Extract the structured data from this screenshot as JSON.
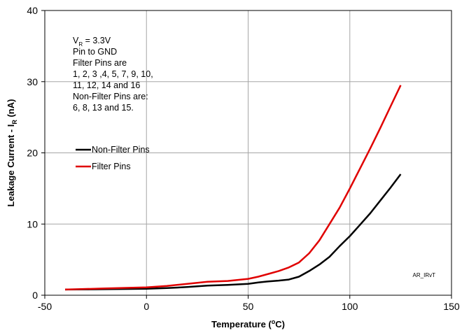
{
  "chart_data": {
    "type": "line",
    "xlabel": {
      "text": "Temperature (",
      "sup": "o",
      "tail": "C)"
    },
    "ylabel": {
      "text": "Leakage Current - I",
      "sub": "R",
      "tail": " (nA)"
    },
    "xlim": [
      -50,
      150
    ],
    "ylim": [
      0,
      40
    ],
    "xticks": [
      "-50",
      "0",
      "50",
      "100",
      "150"
    ],
    "yticks": [
      "0",
      "10",
      "20",
      "30",
      "40"
    ],
    "grid": true,
    "legend_position": "upper-left",
    "annotation_first": {
      "text": "V",
      "sub": "R",
      "tail": " = 3.3V"
    },
    "annotation_lines": [
      "Pin to GND",
      "Filter Pins are",
      "1, 2, 3 ,4, 5, 7, 9, 10,",
      "11, 12, 14 and 16",
      "Non-Filter Pins are:",
      "6, 8, 13 and 15."
    ],
    "tag": "AR_IRvT",
    "series": [
      {
        "name": "Non-Filter Pins",
        "color": "#000000",
        "x": [
          -40,
          -20,
          0,
          10,
          20,
          30,
          40,
          50,
          55,
          60,
          65,
          70,
          75,
          80,
          85,
          90,
          95,
          100,
          105,
          110,
          115,
          120,
          125
        ],
        "y": [
          0.8,
          0.85,
          0.9,
          1.0,
          1.15,
          1.35,
          1.45,
          1.6,
          1.8,
          1.95,
          2.05,
          2.2,
          2.6,
          3.4,
          4.3,
          5.4,
          6.9,
          8.3,
          9.9,
          11.5,
          13.3,
          15.1,
          17.0
        ]
      },
      {
        "name": "Filter Pins",
        "color": "#e00000",
        "x": [
          -40,
          -20,
          0,
          10,
          20,
          30,
          40,
          50,
          55,
          60,
          65,
          70,
          75,
          80,
          85,
          90,
          95,
          100,
          105,
          110,
          115,
          120,
          125
        ],
        "y": [
          0.8,
          0.95,
          1.1,
          1.3,
          1.6,
          1.9,
          2.0,
          2.3,
          2.6,
          3.0,
          3.4,
          3.9,
          4.6,
          5.9,
          7.7,
          10.0,
          12.3,
          15.0,
          17.8,
          20.6,
          23.5,
          26.5,
          29.5
        ]
      }
    ]
  }
}
